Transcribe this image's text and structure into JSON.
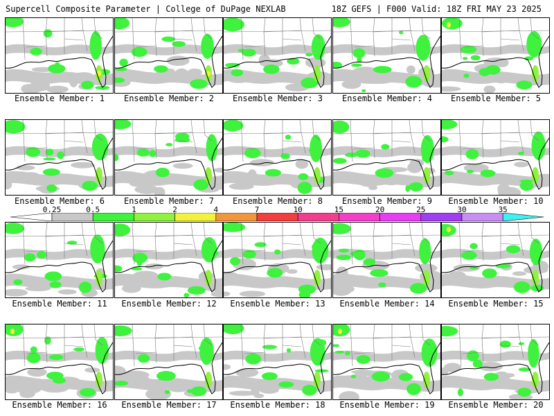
{
  "header": {
    "title": "Supercell Composite Parameter | College of DuPage NEXLAB",
    "run_info": "18Z GEFS | F000 Valid: 18Z FRI MAY 23 2025"
  },
  "colorbar": {
    "labels": [
      "0.25",
      "0.5",
      "1",
      "2",
      "4",
      "7",
      "10",
      "15",
      "20",
      "25",
      "30",
      "35"
    ],
    "colors": [
      "#c8c8c8",
      "#3ef23e",
      "#8ff23e",
      "#f2f23e",
      "#f2963e",
      "#f23e3e",
      "#f23e8f",
      "#f23ec8",
      "#e63ef2",
      "#a03ef2",
      "#c88ff2",
      "#3ef2f2"
    ]
  },
  "members": [
    {
      "label": "Ensemble Member: 1"
    },
    {
      "label": "Ensemble Member: 2"
    },
    {
      "label": "Ensemble Member: 3"
    },
    {
      "label": "Ensemble Member: 4"
    },
    {
      "label": "Ensemble Member: 5"
    },
    {
      "label": "Ensemble Member: 6"
    },
    {
      "label": "Ensemble Member: 7"
    },
    {
      "label": "Ensemble Member: 8"
    },
    {
      "label": "Ensemble Member: 9"
    },
    {
      "label": "Ensemble Member: 10"
    },
    {
      "label": "Ensemble Member: 11"
    },
    {
      "label": "Ensemble Member: 12"
    },
    {
      "label": "Ensemble Member: 13"
    },
    {
      "label": "Ensemble Member: 14"
    },
    {
      "label": "Ensemble Member: 15"
    },
    {
      "label": "Ensemble Member: 16"
    },
    {
      "label": "Ensemble Member: 17"
    },
    {
      "label": "Ensemble Member: 18"
    },
    {
      "label": "Ensemble Member: 19"
    },
    {
      "label": "Ensemble Member: 20"
    }
  ]
}
